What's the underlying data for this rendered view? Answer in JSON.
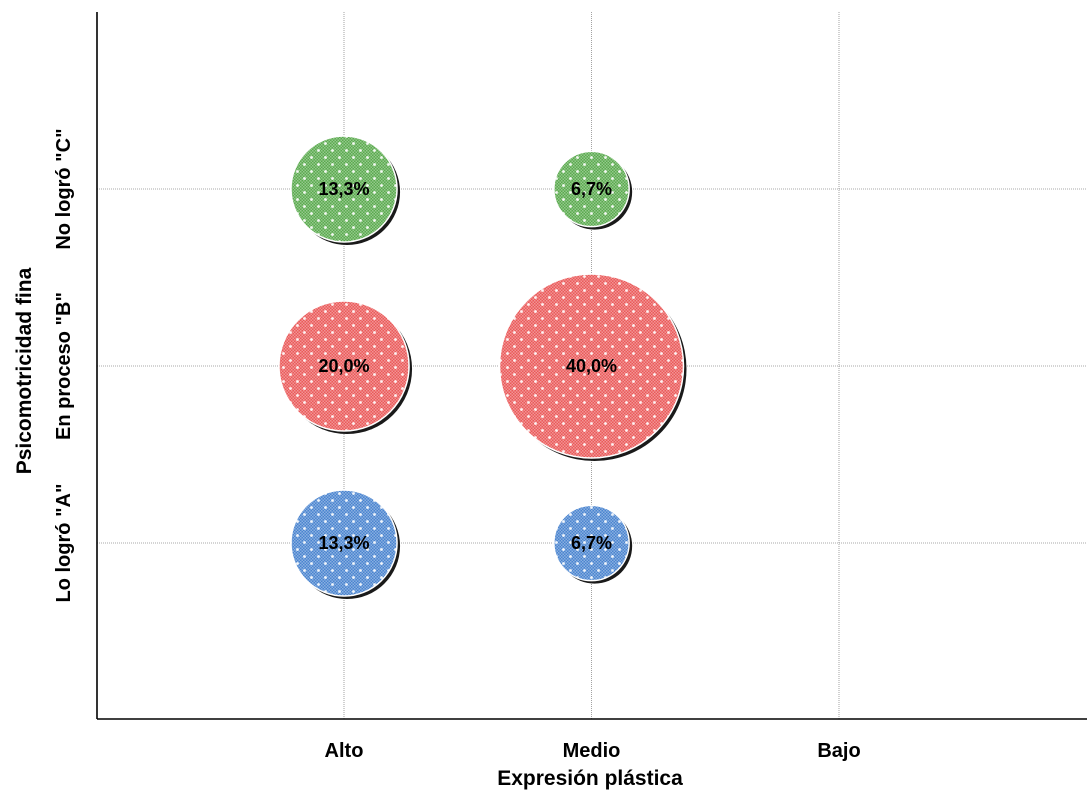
{
  "chart_data": {
    "type": "bubble",
    "title": "",
    "xlabel": "Expresión plástica",
    "ylabel": "Psicomotricidad fina",
    "x_categories": [
      "Alto",
      "Medio",
      "Bajo"
    ],
    "y_categories": [
      "Lo logró \"A\"",
      "En proceso \"B\"",
      "No logró \"C\""
    ],
    "grid": true,
    "legend": "none",
    "bubbles": [
      {
        "x": "Alto",
        "y": "No logró \"C\"",
        "value": 13.3,
        "label": "13,3%",
        "color": "#5aaa4e"
      },
      {
        "x": "Medio",
        "y": "No logró \"C\"",
        "value": 6.7,
        "label": "6,7%",
        "color": "#5aaa4e"
      },
      {
        "x": "Alto",
        "y": "En proceso \"B\"",
        "value": 20.0,
        "label": "20,0%",
        "color": "#ea5a5a"
      },
      {
        "x": "Medio",
        "y": "En proceso \"B\"",
        "value": 40.0,
        "label": "40,0%",
        "color": "#ea5a5a"
      },
      {
        "x": "Alto",
        "y": "Lo logró \"A\"",
        "value": 13.3,
        "label": "13,3%",
        "color": "#4a84cf"
      },
      {
        "x": "Medio",
        "y": "Lo logró \"A\"",
        "value": 6.7,
        "label": "6,7%",
        "color": "#4a84cf"
      }
    ]
  }
}
